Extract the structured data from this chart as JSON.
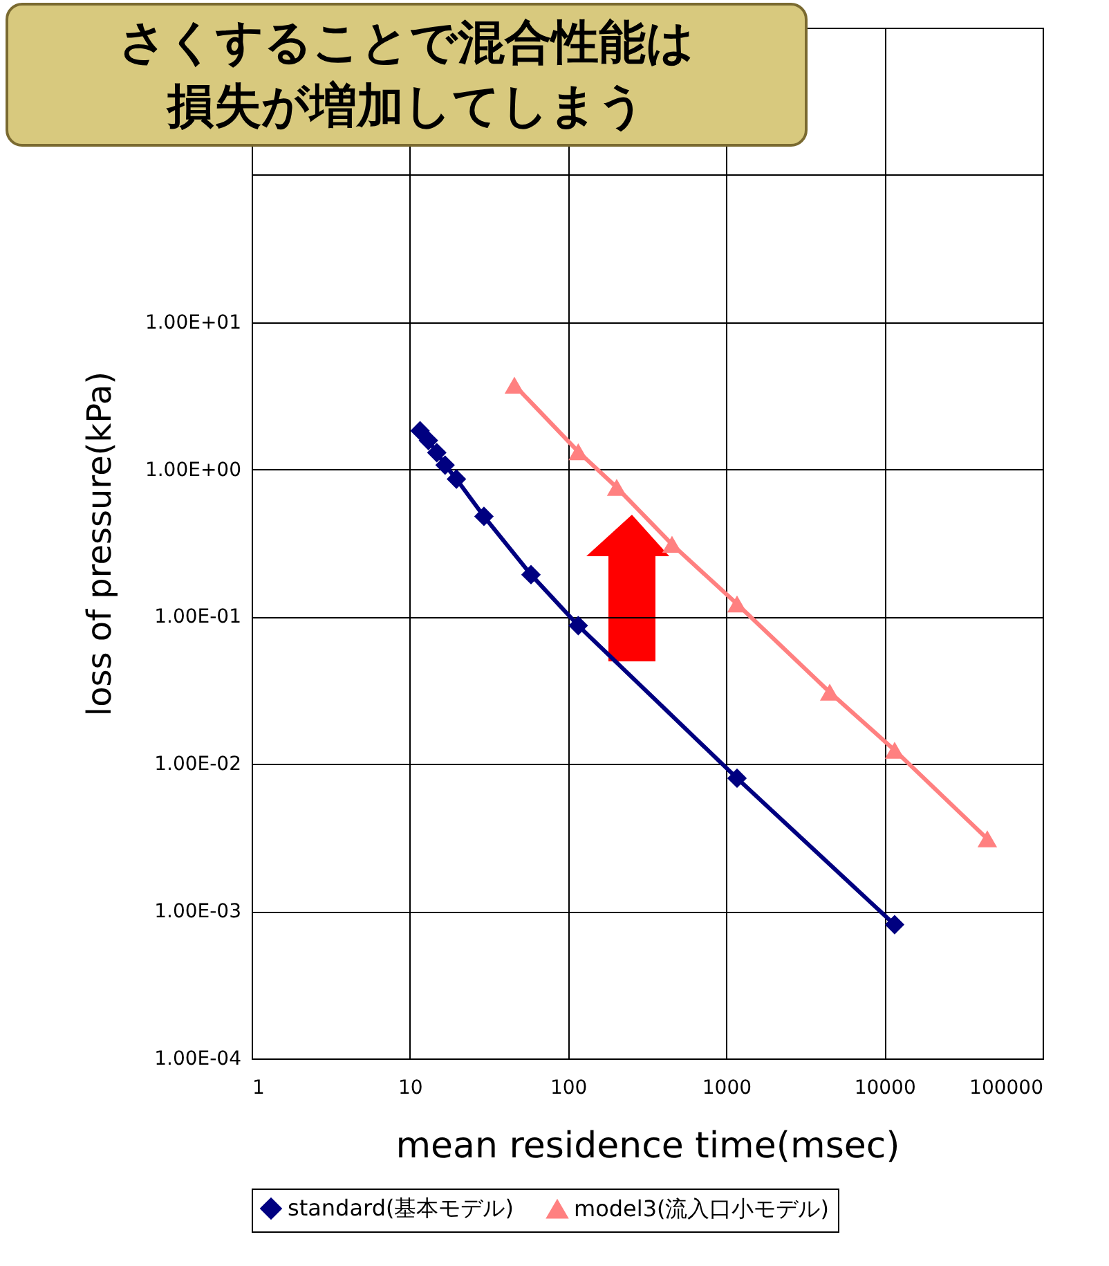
{
  "chart_data": {
    "type": "line",
    "xlabel": "mean residence time(msec)",
    "ylabel": "loss of pressure(kPa)",
    "log": "xy",
    "grid": true,
    "legend": "bottom",
    "annotations": [
      "さくすることで混合性能は",
      "損失が増加してしまう"
    ],
    "xlim": [
      1,
      100000
    ],
    "xticks": [
      1,
      10,
      100,
      1000,
      10000,
      100000
    ],
    "ylim": [
      0.0001,
      1000
    ],
    "yticks": [
      {
        "value": 0.0001,
        "label": "1.00E-04"
      },
      {
        "value": 0.001,
        "label": "1.00E-03"
      },
      {
        "value": 0.01,
        "label": "1.00E-02"
      },
      {
        "value": 0.1,
        "label": "1.00E-01"
      },
      {
        "value": 1,
        "label": "1.00E+00"
      },
      {
        "value": 10,
        "label": "1.00E+01"
      },
      {
        "value": 100,
        "label": null
      },
      {
        "value": 1000,
        "label": null
      }
    ],
    "series": [
      {
        "name": "standard(基本モデル)",
        "color": "#000080",
        "marker": "diamond",
        "x": [
          11.6,
          13.1,
          14.8,
          16.7,
          19.7,
          29.4,
          58.3,
          116,
          1170,
          11600
        ],
        "values": [
          1.83,
          1.57,
          1.3,
          1.07,
          0.86,
          0.48,
          0.193,
          0.087,
          0.008,
          0.00081
        ]
      },
      {
        "name": "model3(流入口小モデル)",
        "color": "#ff8080",
        "marker": "triangle",
        "x": [
          45.8,
          116,
          203,
          454,
          1170,
          4510,
          11600,
          44700
        ],
        "values": [
          3.74,
          1.32,
          0.755,
          0.31,
          0.122,
          0.0307,
          0.0124,
          0.0031
        ]
      }
    ]
  }
}
